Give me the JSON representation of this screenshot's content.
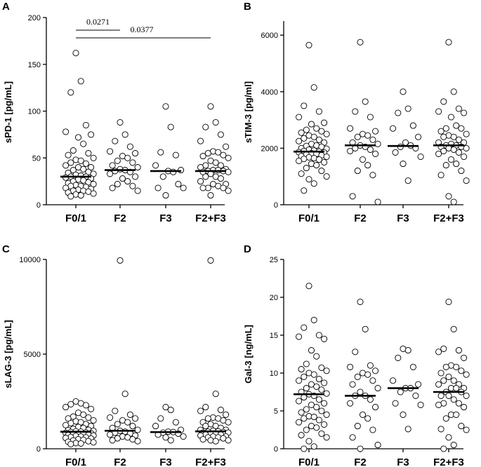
{
  "chart_data": [
    {
      "panel": "A",
      "type": "scatter",
      "ylabel": "sPD-1 [pg/mL]",
      "ylim": [
        0,
        200
      ],
      "yticks": [
        0,
        50,
        100,
        150,
        200
      ],
      "categories": [
        "F0/1",
        "F2",
        "F3",
        "F2+F3"
      ],
      "medians": [
        30,
        37,
        36,
        36
      ],
      "series": [
        {
          "name": "F0/1",
          "values": [
            162,
            132,
            120,
            85,
            78,
            75,
            72,
            65,
            58,
            55,
            53,
            50,
            48,
            47,
            45,
            44,
            42,
            40,
            40,
            38,
            37,
            35,
            34,
            33,
            32,
            31,
            30,
            30,
            29,
            28,
            27,
            26,
            25,
            24,
            23,
            22,
            21,
            20,
            20,
            19,
            18,
            17,
            16,
            15,
            15,
            14,
            13,
            12,
            11,
            10,
            9
          ]
        },
        {
          "name": "F2",
          "values": [
            88,
            75,
            68,
            62,
            57,
            55,
            52,
            50,
            47,
            45,
            42,
            40,
            38,
            37,
            36,
            35,
            33,
            30,
            28,
            25,
            22,
            20,
            18,
            15
          ]
        },
        {
          "name": "F3",
          "values": [
            105,
            83,
            56,
            53,
            42,
            37,
            36,
            35,
            30,
            22,
            18,
            18,
            10
          ]
        },
        {
          "name": "F2+F3",
          "values": [
            105,
            88,
            83,
            75,
            68,
            62,
            57,
            56,
            55,
            53,
            52,
            50,
            47,
            45,
            42,
            42,
            40,
            38,
            37,
            37,
            36,
            36,
            35,
            35,
            33,
            30,
            30,
            28,
            25,
            22,
            22,
            20,
            18,
            18,
            18,
            15,
            10
          ]
        }
      ],
      "significance": [
        {
          "from": "F0/1",
          "to": "F2",
          "label": "0.0271"
        },
        {
          "from": "F0/1",
          "to": "F2+F3",
          "label": "0.0377"
        }
      ]
    },
    {
      "panel": "B",
      "type": "scatter",
      "ylabel": "sTIM-3 [pg/ml]",
      "ylim": [
        0,
        6500
      ],
      "yticks": [
        0,
        2000,
        4000,
        6000
      ],
      "categories": [
        "F0/1",
        "F2",
        "F3",
        "F2+F3"
      ],
      "medians": [
        1880,
        2100,
        2080,
        2100
      ],
      "series": [
        {
          "name": "F0/1",
          "values": [
            5650,
            4150,
            3500,
            3300,
            3100,
            2900,
            2850,
            2700,
            2650,
            2600,
            2550,
            2500,
            2450,
            2400,
            2350,
            2300,
            2250,
            2200,
            2150,
            2100,
            2080,
            2050,
            2000,
            1980,
            1950,
            1920,
            1900,
            1880,
            1860,
            1850,
            1820,
            1800,
            1780,
            1750,
            1720,
            1700,
            1680,
            1650,
            1620,
            1600,
            1550,
            1500,
            1450,
            1400,
            1300,
            1200,
            1100,
            1000,
            900,
            750,
            500
          ]
        },
        {
          "name": "F2",
          "values": [
            5750,
            3650,
            3300,
            3100,
            2700,
            2600,
            2500,
            2450,
            2400,
            2300,
            2200,
            2150,
            2100,
            2050,
            2000,
            1950,
            1900,
            1800,
            1600,
            1400,
            1200,
            1050,
            300,
            100
          ]
        },
        {
          "name": "F3",
          "values": [
            4000,
            3400,
            3250,
            2800,
            2700,
            2400,
            2200,
            2100,
            2050,
            2000,
            1850,
            1700,
            1450,
            850
          ]
        },
        {
          "name": "F2+F3",
          "values": [
            5750,
            4000,
            3650,
            3400,
            3300,
            3250,
            3100,
            2800,
            2700,
            2700,
            2600,
            2500,
            2450,
            2400,
            2400,
            2300,
            2200,
            2200,
            2150,
            2100,
            2100,
            2050,
            2050,
            2000,
            2000,
            1950,
            1900,
            1850,
            1800,
            1700,
            1600,
            1450,
            1400,
            1200,
            1050,
            850,
            300,
            100
          ]
        }
      ]
    },
    {
      "panel": "C",
      "type": "scatter",
      "ylabel": "sLAG-3 [pg/mL]",
      "ylim": [
        0,
        10000
      ],
      "yticks": [
        0,
        5000,
        10000
      ],
      "categories": [
        "F0/1",
        "F2",
        "F3",
        "F2+F3"
      ],
      "medians": [
        900,
        950,
        880,
        920
      ],
      "series": [
        {
          "name": "F0/1",
          "values": [
            2500,
            2400,
            2350,
            2300,
            2200,
            2100,
            1900,
            1800,
            1700,
            1650,
            1600,
            1500,
            1450,
            1400,
            1350,
            1300,
            1250,
            1200,
            1150,
            1100,
            1050,
            1000,
            980,
            950,
            920,
            900,
            880,
            860,
            840,
            820,
            800,
            780,
            760,
            740,
            720,
            700,
            680,
            650,
            620,
            600,
            570,
            540,
            500,
            470,
            440,
            400,
            370,
            340,
            300,
            280,
            250
          ]
        },
        {
          "name": "F2",
          "values": [
            9950,
            2900,
            2000,
            1800,
            1650,
            1600,
            1500,
            1400,
            1300,
            1200,
            1100,
            1000,
            950,
            900,
            850,
            800,
            750,
            700,
            650,
            600,
            550,
            500,
            450,
            400
          ]
        },
        {
          "name": "F3",
          "values": [
            2200,
            2050,
            1600,
            1400,
            1200,
            1000,
            900,
            880,
            850,
            800,
            750,
            650,
            600,
            450
          ]
        },
        {
          "name": "F2+F3",
          "values": [
            9950,
            2900,
            2200,
            2050,
            2000,
            1800,
            1650,
            1600,
            1600,
            1500,
            1400,
            1400,
            1300,
            1200,
            1200,
            1100,
            1000,
            1000,
            950,
            920,
            900,
            880,
            850,
            850,
            800,
            800,
            750,
            750,
            700,
            650,
            650,
            600,
            600,
            550,
            500,
            450,
            450,
            400
          ]
        }
      ]
    },
    {
      "panel": "D",
      "type": "scatter",
      "ylabel": "Gal-3 [ng/mL]",
      "ylim": [
        0,
        25
      ],
      "yticks": [
        0,
        5,
        10,
        15,
        20,
        25
      ],
      "categories": [
        "F0/1",
        "F2",
        "F3",
        "F2+F3"
      ],
      "medians": [
        7.2,
        7.0,
        8.0,
        7.5
      ],
      "series": [
        {
          "name": "F0/1",
          "values": [
            21.5,
            17.0,
            16.0,
            15.0,
            14.8,
            14.5,
            13.0,
            12.2,
            11.2,
            10.7,
            10.5,
            10.3,
            10.0,
            9.8,
            9.5,
            9.2,
            9.0,
            8.7,
            8.5,
            8.2,
            8.0,
            7.8,
            7.5,
            7.3,
            7.2,
            7.0,
            6.8,
            6.5,
            6.3,
            6.0,
            5.8,
            5.5,
            5.2,
            5.0,
            4.8,
            4.5,
            4.3,
            4.2,
            4.0,
            3.8,
            3.5,
            3.2,
            3.0,
            2.8,
            2.5,
            2.0,
            1.8,
            1.5,
            1.0,
            0.3,
            0.0
          ]
        },
        {
          "name": "F2",
          "values": [
            19.4,
            15.8,
            12.8,
            11.0,
            10.8,
            10.3,
            10.0,
            9.8,
            9.5,
            9.0,
            8.5,
            8.0,
            7.5,
            7.0,
            7.0,
            6.5,
            6.0,
            5.5,
            4.5,
            4.0,
            3.0,
            2.5,
            1.5,
            0.5,
            0.0
          ]
        },
        {
          "name": "F3",
          "values": [
            13.2,
            13.0,
            12.0,
            10.8,
            9.0,
            8.5,
            8.0,
            8.0,
            7.5,
            7.0,
            6.0,
            5.8,
            4.5,
            2.6
          ]
        },
        {
          "name": "F2+F3",
          "values": [
            19.4,
            15.8,
            13.2,
            13.0,
            12.8,
            12.0,
            11.0,
            10.8,
            10.8,
            10.3,
            10.0,
            9.8,
            9.5,
            9.0,
            9.0,
            8.5,
            8.5,
            8.0,
            8.0,
            8.0,
            7.5,
            7.5,
            7.0,
            7.0,
            7.0,
            6.5,
            6.0,
            6.0,
            5.8,
            5.5,
            4.5,
            4.5,
            4.0,
            3.0,
            2.6,
            2.5,
            1.5,
            0.5,
            0.0
          ]
        }
      ]
    }
  ]
}
